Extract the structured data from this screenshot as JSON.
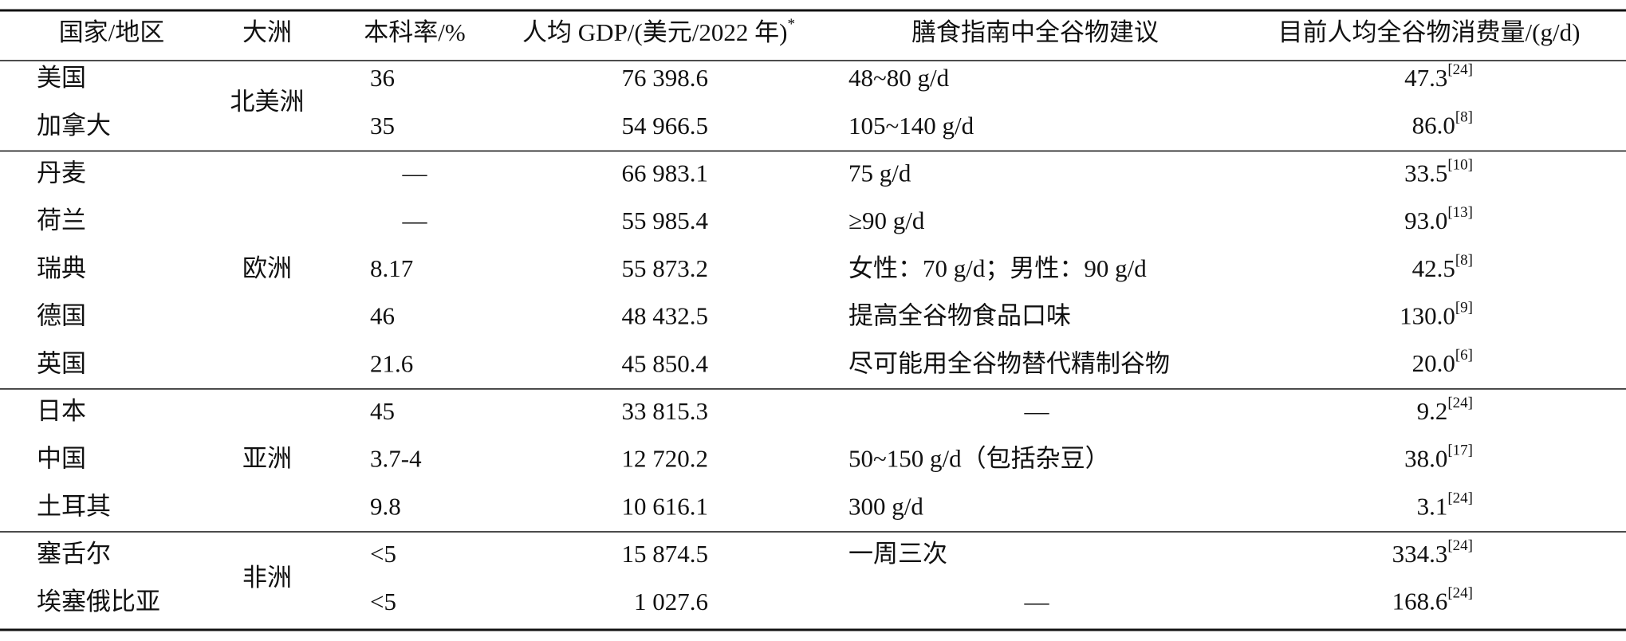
{
  "table": {
    "headers": [
      "国家/地区",
      "大洲",
      "本科率/%",
      "人均 GDP/(美元/2022 年)",
      "膳食指南中全谷物建议",
      "目前人均全谷物消费量/(g/d)"
    ],
    "header_note": "*",
    "groups": [
      {
        "continent": "北美洲",
        "rows": [
          [
            "美国",
            "36",
            "76 398.6",
            "48~80 g/d",
            "47.3",
            "[24]"
          ],
          [
            "加拿大",
            "35",
            "54 966.5",
            "105~140 g/d",
            "86.0",
            "[8]"
          ]
        ]
      },
      {
        "continent": "欧洲",
        "rows": [
          [
            "丹麦",
            "—",
            "66 983.1",
            "75 g/d",
            "33.5",
            "[10]"
          ],
          [
            "荷兰",
            "—",
            "55 985.4",
            "≥90 g/d",
            "93.0",
            "[13]"
          ],
          [
            "瑞典",
            "8.17",
            "55 873.2",
            "女性：70 g/d；男性：90 g/d",
            "42.5",
            "[8]"
          ],
          [
            "德国",
            "46",
            "48 432.5",
            "提高全谷物食品口味",
            "130.0",
            "[9]"
          ],
          [
            "英国",
            "21.6",
            "45 850.4",
            "尽可能用全谷物替代精制谷物",
            "20.0",
            "[6]"
          ]
        ]
      },
      {
        "continent": "亚洲",
        "rows": [
          [
            "日本",
            "45",
            "33 815.3",
            "—",
            "9.2",
            "[24]"
          ],
          [
            "中国",
            "3.7-4",
            "12 720.2",
            "50~150 g/d（包括杂豆）",
            "38.0",
            "[17]"
          ],
          [
            "土耳其",
            "9.8",
            "10 616.1",
            "300 g/d",
            "3.1",
            "[24]"
          ]
        ]
      },
      {
        "continent": "非洲",
        "rows": [
          [
            "塞舌尔",
            "<5",
            "15 874.5",
            "一周三次",
            "334.3",
            "[24]"
          ],
          [
            "埃塞俄比亚",
            "<5",
            "1 027.6",
            "—",
            "168.6",
            "[24]"
          ]
        ]
      }
    ]
  }
}
